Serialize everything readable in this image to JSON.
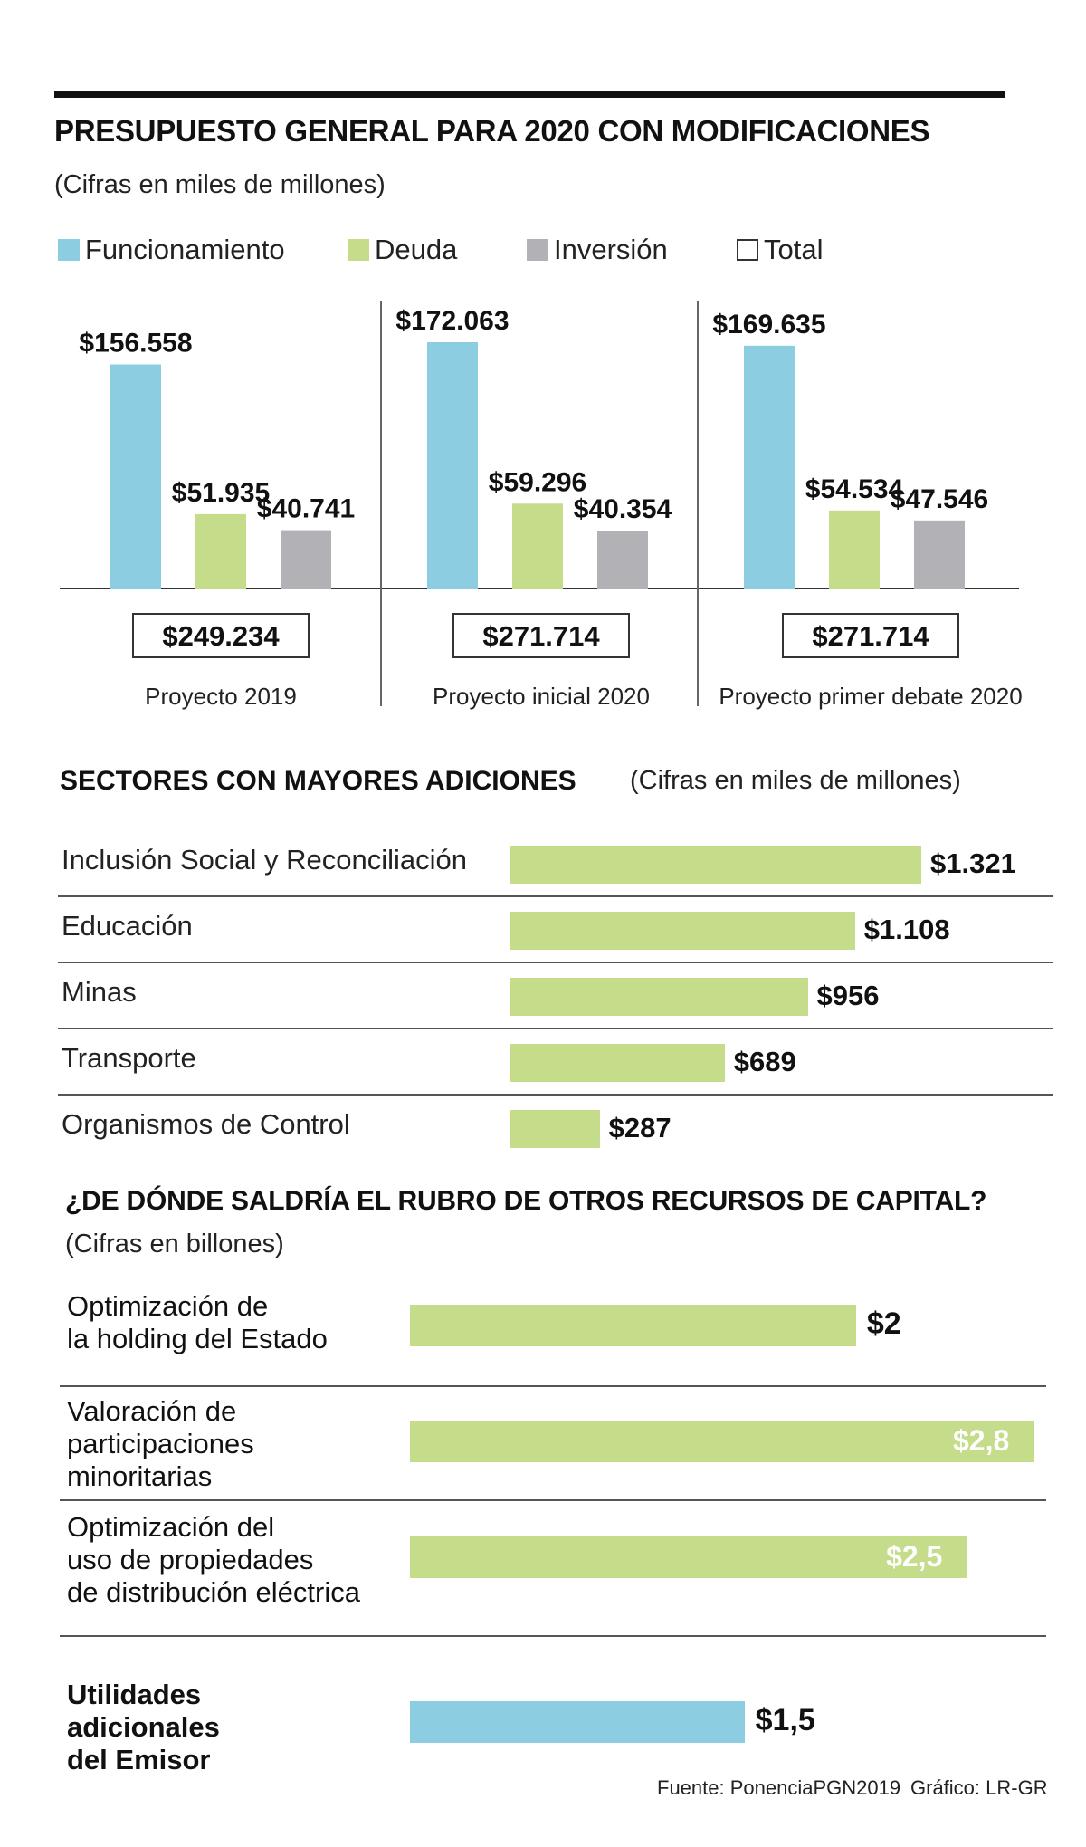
{
  "header": {
    "title": "PRESUPUESTO GENERAL PARA 2020 CON MODIFICACIONES",
    "subtitle": "(Cifras en miles de millones)"
  },
  "legend": [
    {
      "label": "Funcionamiento",
      "color": "#8ccde2"
    },
    {
      "label": "Deuda",
      "color": "#c5dc8b"
    },
    {
      "label": "Inversión",
      "color": "#b1b1b6"
    },
    {
      "label": "Total",
      "color": "#ffffff"
    }
  ],
  "chart_data": [
    {
      "type": "bar",
      "title": "PRESUPUESTO GENERAL PARA 2020 CON MODIFICACIONES",
      "unit": "miles de millones",
      "categories": [
        "Proyecto 2019",
        "Proyecto inicial 2020",
        "Proyecto primer debate 2020"
      ],
      "series": [
        {
          "name": "Funcionamiento",
          "values": [
            156558,
            172063,
            169635
          ],
          "labels": [
            "$156.558",
            "$172.063",
            "$169.635"
          ]
        },
        {
          "name": "Deuda",
          "values": [
            51935,
            59296,
            54534
          ],
          "labels": [
            "$51.935",
            "$59.296",
            "$54.534"
          ]
        },
        {
          "name": "Inversión",
          "values": [
            40741,
            40354,
            47546
          ],
          "labels": [
            "$40.741",
            "$40.354",
            "$47.546"
          ]
        }
      ],
      "totals": [
        "$249.234",
        "$271.714",
        "$271.714"
      ],
      "ylim": [
        0,
        180000
      ]
    },
    {
      "type": "bar",
      "orientation": "horizontal",
      "title": "SECTORES CON MAYORES ADICIONES",
      "subtitle": "(Cifras en miles de millones)",
      "categories": [
        "Inclusión Social y Reconciliación",
        "Educación",
        "Minas",
        "Transporte",
        "Organismos de Control"
      ],
      "values": [
        1321,
        1108,
        956,
        689,
        287
      ],
      "labels": [
        "$1.321",
        "$1.108",
        "$956",
        "$689",
        "$287"
      ]
    },
    {
      "type": "bar",
      "orientation": "horizontal",
      "title": "¿DE DÓNDE SALDRÍA EL RUBRO DE OTROS RECURSOS DE CAPITAL?",
      "subtitle": "(Cifras en billones)",
      "categories": [
        [
          "Optimización de",
          "la holding del Estado"
        ],
        [
          "Valoración de",
          "participaciones",
          "minoritarias"
        ],
        [
          "Optimización del",
          "uso de propiedades",
          "de distribución eléctrica"
        ],
        [
          "Utilidades",
          "adicionales",
          "del Emisor"
        ]
      ],
      "values": [
        2,
        2.8,
        2.5,
        1.5
      ],
      "labels": [
        "$2",
        "$2,8",
        "$2,5",
        "$1,5"
      ],
      "colors": [
        "#c5dc8b",
        "#c5dc8b",
        "#c5dc8b",
        "#8ccde2"
      ]
    }
  ],
  "footer": {
    "source": "Fuente: PonenciaPGN2019",
    "credit": "Gráfico: LR-GR"
  }
}
